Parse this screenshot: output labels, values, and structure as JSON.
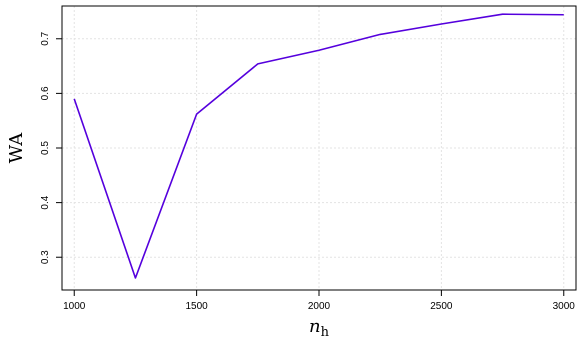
{
  "chart_data": {
    "type": "line",
    "title": "",
    "xlabel": "n",
    "xlabel_sub": "h",
    "ylabel": "WA",
    "xlim": [
      950,
      3050
    ],
    "ylim": [
      0.24,
      0.76
    ],
    "xticks": [
      1000,
      1500,
      2000,
      2500,
      3000
    ],
    "yticks": [
      0.3,
      0.4,
      0.5,
      0.6,
      0.7
    ],
    "ytick_labels": [
      "0.3",
      "0.4",
      "0.5",
      "0.6",
      "0.7"
    ],
    "grid": true,
    "x": [
      1000,
      1250,
      1500,
      1750,
      2000,
      2250,
      2500,
      2750,
      3000
    ],
    "series": [
      {
        "values": [
          0.59,
          0.262,
          0.562,
          0.654,
          0.679,
          0.708,
          0.727,
          0.745,
          0.744
        ],
        "color": "#5500dd"
      }
    ]
  }
}
